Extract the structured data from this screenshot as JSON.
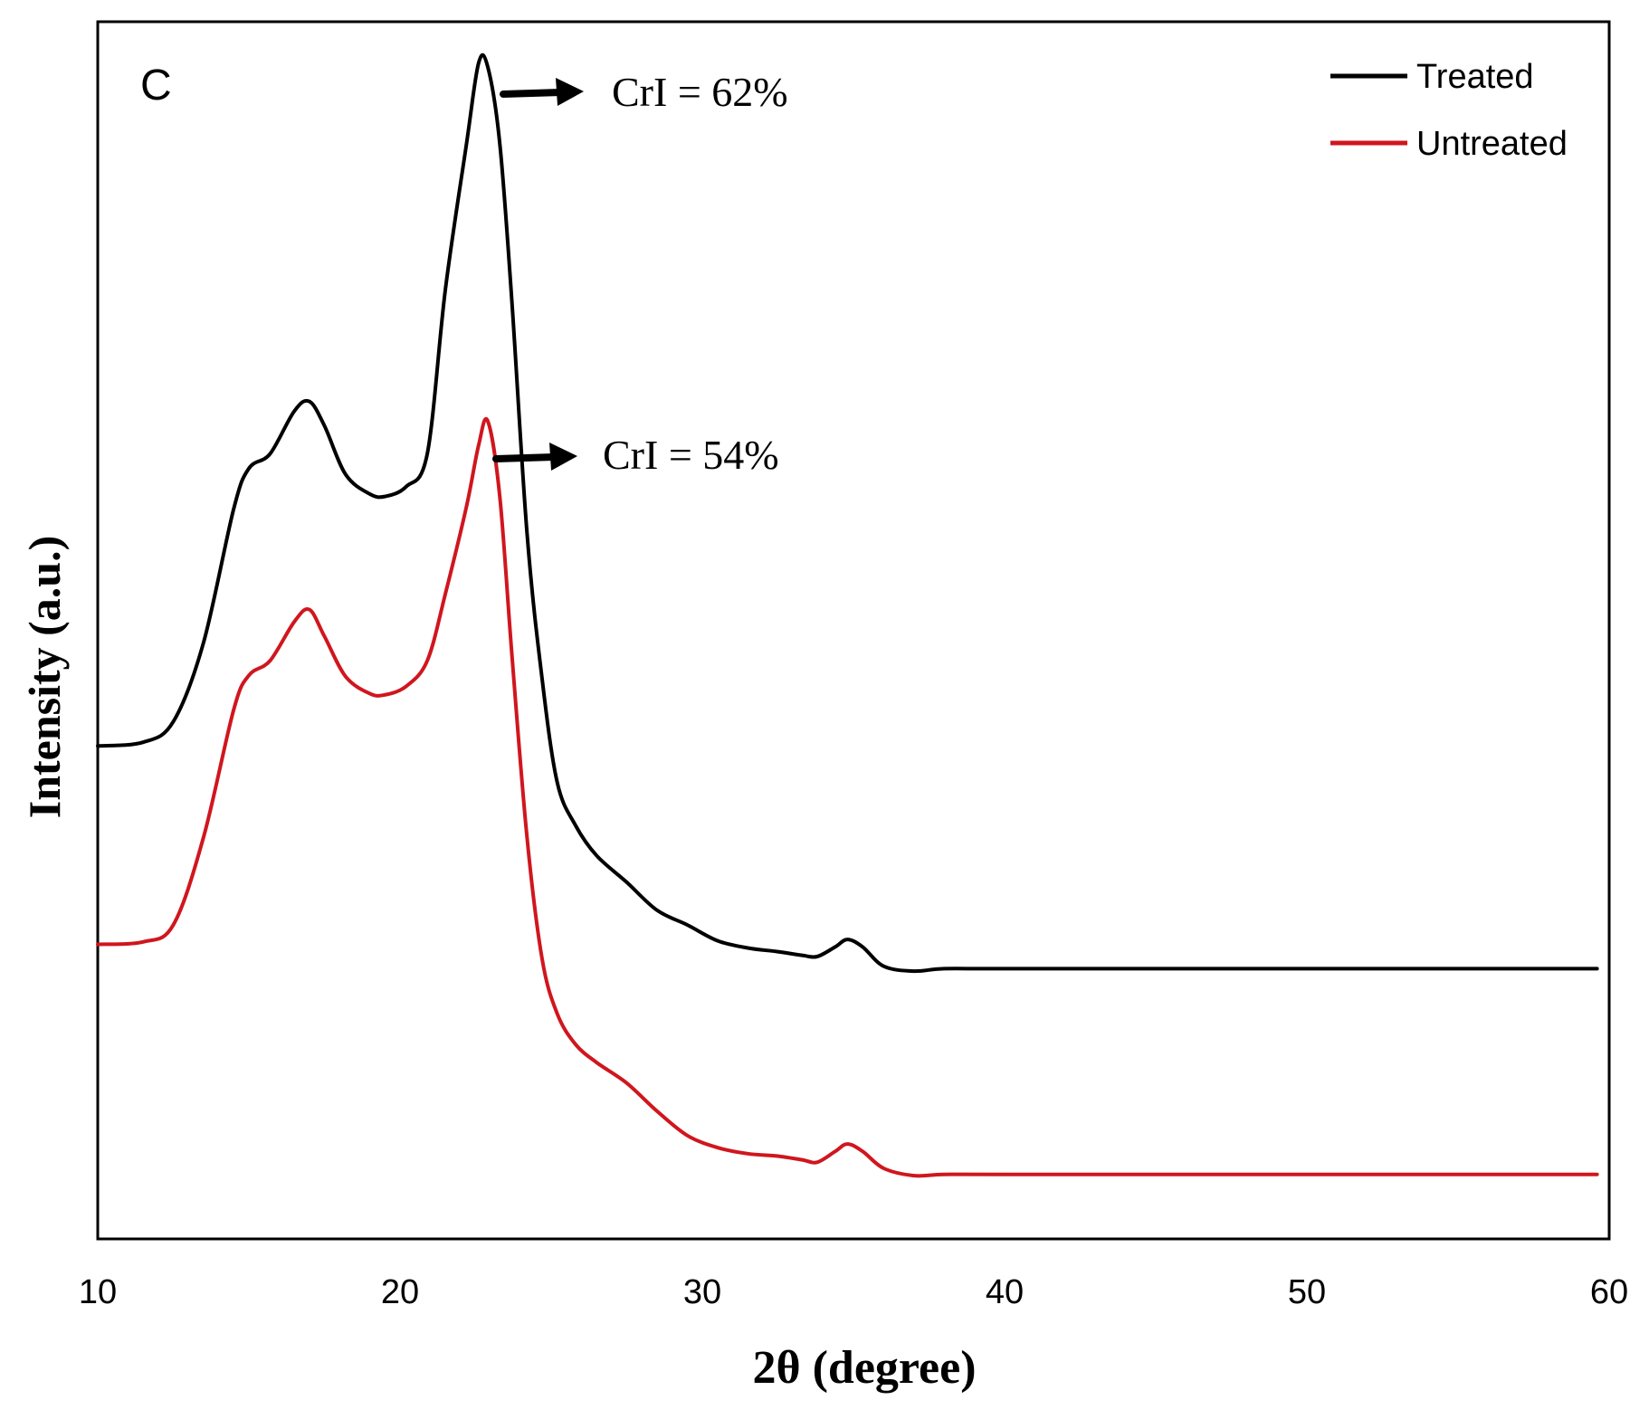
{
  "chart_data": {
    "type": "line",
    "panel_label": "C",
    "title": "",
    "xlabel": "2θ (degree)",
    "ylabel": "Intensity (a.u.)",
    "xlim": [
      10,
      60
    ],
    "ylim": [
      0,
      100
    ],
    "xticks": [
      10,
      20,
      30,
      40,
      50,
      60
    ],
    "x_tick_labels": [
      "10",
      "20",
      "30",
      "40",
      "50",
      "60"
    ],
    "y_tick_labels_shown": false,
    "grid": false,
    "legend": {
      "position": "top-right",
      "entries": [
        "Treated",
        "Untreated"
      ]
    },
    "series": [
      {
        "name": "Treated",
        "color": "#000000",
        "points": [
          [
            10,
            40.5
          ],
          [
            11.5,
            40.8
          ],
          [
            12.5,
            42.5
          ],
          [
            13.5,
            49
          ],
          [
            14.5,
            60
          ],
          [
            15,
            63.3
          ],
          [
            15.7,
            64.5
          ],
          [
            16.5,
            68
          ],
          [
            17,
            68.8
          ],
          [
            17.5,
            66.8
          ],
          [
            18.2,
            62.8
          ],
          [
            19,
            61.2
          ],
          [
            19.5,
            61
          ],
          [
            20.2,
            61.8
          ],
          [
            20.9,
            64.5
          ],
          [
            21.5,
            78
          ],
          [
            22.2,
            90
          ],
          [
            22.6,
            96.6
          ],
          [
            22.9,
            96.3
          ],
          [
            23.3,
            90
          ],
          [
            23.7,
            77
          ],
          [
            24.2,
            58
          ],
          [
            24.7,
            46
          ],
          [
            25.2,
            37.5
          ],
          [
            25.8,
            34
          ],
          [
            26.5,
            31.5
          ],
          [
            27.5,
            29.3
          ],
          [
            28.5,
            27
          ],
          [
            29.5,
            25.8
          ],
          [
            30.5,
            24.5
          ],
          [
            31.5,
            23.9
          ],
          [
            32.5,
            23.6
          ],
          [
            33.3,
            23.3
          ],
          [
            33.8,
            23.2
          ],
          [
            34.4,
            24
          ],
          [
            34.8,
            24.6
          ],
          [
            35.3,
            24
          ],
          [
            36,
            22.4
          ],
          [
            37,
            22
          ],
          [
            38,
            22.2
          ],
          [
            40,
            22.2
          ],
          [
            50,
            22.2
          ],
          [
            59.6,
            22.2
          ]
        ]
      },
      {
        "name": "Untreated",
        "color": "#d0161e",
        "points": [
          [
            10,
            24.2
          ],
          [
            11.5,
            24.4
          ],
          [
            12.5,
            25.8
          ],
          [
            13.5,
            33
          ],
          [
            14.5,
            43.5
          ],
          [
            15,
            46.3
          ],
          [
            15.7,
            47.5
          ],
          [
            16.5,
            50.7
          ],
          [
            17,
            51.7
          ],
          [
            17.5,
            49.5
          ],
          [
            18.2,
            46.2
          ],
          [
            19,
            44.8
          ],
          [
            19.5,
            44.7
          ],
          [
            20.2,
            45.4
          ],
          [
            20.9,
            47.5
          ],
          [
            21.5,
            53
          ],
          [
            22.2,
            60.2
          ],
          [
            22.6,
            65.2
          ],
          [
            22.9,
            67.2
          ],
          [
            23.3,
            61
          ],
          [
            23.7,
            48
          ],
          [
            24.2,
            33
          ],
          [
            24.7,
            23
          ],
          [
            25.2,
            18.5
          ],
          [
            25.8,
            16
          ],
          [
            26.5,
            14.5
          ],
          [
            27.5,
            12.8
          ],
          [
            28.5,
            10.5
          ],
          [
            29.5,
            8.5
          ],
          [
            30.5,
            7.5
          ],
          [
            31.5,
            7
          ],
          [
            32.5,
            6.8
          ],
          [
            33.3,
            6.5
          ],
          [
            33.8,
            6.3
          ],
          [
            34.4,
            7.2
          ],
          [
            34.8,
            7.8
          ],
          [
            35.3,
            7.2
          ],
          [
            36,
            5.8
          ],
          [
            37,
            5.2
          ],
          [
            38,
            5.3
          ],
          [
            40,
            5.3
          ],
          [
            50,
            5.3
          ],
          [
            59.6,
            5.3
          ]
        ]
      }
    ],
    "annotations": [
      {
        "text": "CrI = 62%",
        "series": "Treated",
        "x": 22.9
      },
      {
        "text": "CrI = 54%",
        "series": "Untreated",
        "x": 22.9
      }
    ]
  }
}
